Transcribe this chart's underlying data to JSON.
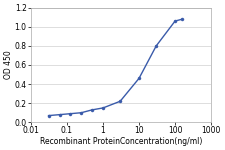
{
  "x": [
    0.031,
    0.063,
    0.125,
    0.25,
    0.5,
    1,
    3,
    10,
    30,
    100,
    160
  ],
  "y": [
    0.07,
    0.08,
    0.09,
    0.1,
    0.13,
    0.15,
    0.22,
    0.46,
    0.8,
    1.06,
    1.08
  ],
  "line_color": "#3a5baa",
  "marker_color": "#3a5baa",
  "marker_style": "o",
  "marker_size": 2.2,
  "line_width": 1.0,
  "xlabel": "Recombinant ProteinConcentration(ng/ml)",
  "ylabel": "OD 450",
  "xlim": [
    0.01,
    1000
  ],
  "ylim": [
    0,
    1.2
  ],
  "yticks": [
    0,
    0.2,
    0.4,
    0.6,
    0.8,
    1.0,
    1.2
  ],
  "xticks": [
    0.01,
    0.1,
    1,
    10,
    100,
    1000
  ],
  "xtick_labels": [
    "0.01",
    "0.1",
    "1",
    "10",
    "100",
    "1000"
  ],
  "grid_color": "#d0d0d0",
  "background_color": "#ffffff",
  "plot_bg_color": "#ffffff",
  "axis_fontsize": 5.5,
  "tick_fontsize": 5.5,
  "ylabel_fontsize": 5.5,
  "xlabel_fontsize": 5.5
}
